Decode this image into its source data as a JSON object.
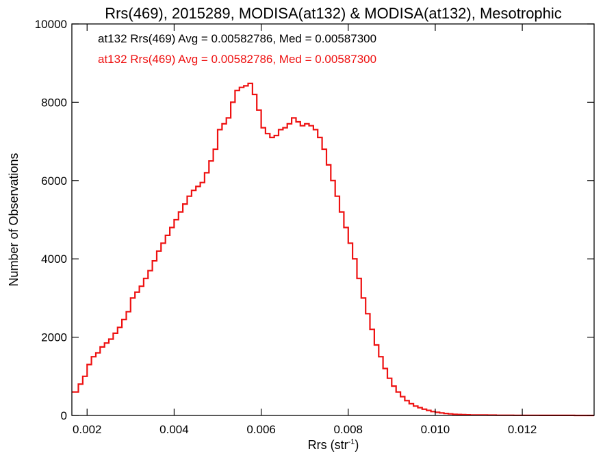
{
  "chart_data": {
    "type": "line",
    "title": "Rrs(469), 2015289, MODISA(at132) & MODISA(at132), Mesotrophic",
    "xlabel": "Rrs (str",
    "xlabel_sup": "-1",
    "xlabel_close": ")",
    "ylabel": "Number of Observations",
    "xlim": [
      0.00165,
      0.01365
    ],
    "ylim": [
      0,
      10000
    ],
    "x_ticks": [
      0.002,
      0.004,
      0.006,
      0.008,
      0.01,
      0.012
    ],
    "x_tick_labels": [
      "0.002",
      "0.004",
      "0.006",
      "0.008",
      "0.010",
      "0.012"
    ],
    "y_ticks": [
      0,
      2000,
      4000,
      6000,
      8000,
      10000
    ],
    "y_tick_labels": [
      "0",
      "2000",
      "4000",
      "6000",
      "8000",
      "10000"
    ],
    "grid": false,
    "legend_position": "top-left",
    "annotations": [
      {
        "text": "at132 Rrs(469) Avg = 0.00582786, Med = 0.00587300",
        "color": "#000000"
      },
      {
        "text": "at132 Rrs(469) Avg = 0.00582786, Med = 0.00587300",
        "color": "#ee1111"
      }
    ],
    "series": [
      {
        "color": "#ee1111",
        "step": true,
        "x": [
          0.00165,
          0.0018,
          0.0019,
          0.002,
          0.0021,
          0.0022,
          0.0023,
          0.0024,
          0.0025,
          0.0026,
          0.0027,
          0.0028,
          0.0029,
          0.003,
          0.0031,
          0.0032,
          0.0033,
          0.0034,
          0.0035,
          0.0036,
          0.0037,
          0.0038,
          0.0039,
          0.004,
          0.0041,
          0.0042,
          0.0043,
          0.0044,
          0.0045,
          0.0046,
          0.0047,
          0.0048,
          0.0049,
          0.005,
          0.0051,
          0.0052,
          0.0053,
          0.0054,
          0.0055,
          0.0056,
          0.0057,
          0.0058,
          0.0059,
          0.006,
          0.0061,
          0.0062,
          0.0063,
          0.0064,
          0.0065,
          0.0066,
          0.0067,
          0.0068,
          0.0069,
          0.007,
          0.0071,
          0.0072,
          0.0073,
          0.0074,
          0.0075,
          0.0076,
          0.0077,
          0.0078,
          0.0079,
          0.008,
          0.0081,
          0.0082,
          0.0083,
          0.0084,
          0.0085,
          0.0086,
          0.0087,
          0.0088,
          0.0089,
          0.009,
          0.0091,
          0.0092,
          0.0093,
          0.0094,
          0.0095,
          0.0096,
          0.0097,
          0.0098,
          0.0099,
          0.01,
          0.0101,
          0.0102,
          0.0103,
          0.0104,
          0.0105,
          0.0106,
          0.0107,
          0.0108,
          0.011,
          0.0112,
          0.0114,
          0.0116,
          0.0118,
          0.012,
          0.0124,
          0.0128,
          0.0132,
          0.01365
        ],
        "y": [
          600,
          800,
          1000,
          1300,
          1500,
          1600,
          1750,
          1850,
          1950,
          2100,
          2250,
          2450,
          2650,
          3000,
          3150,
          3300,
          3500,
          3700,
          3950,
          4200,
          4400,
          4600,
          4800,
          5000,
          5200,
          5400,
          5600,
          5750,
          5850,
          5950,
          6200,
          6500,
          6800,
          7300,
          7450,
          7600,
          8000,
          8300,
          8380,
          8420,
          8480,
          8200,
          7800,
          7350,
          7200,
          7100,
          7150,
          7300,
          7350,
          7450,
          7600,
          7500,
          7400,
          7450,
          7400,
          7300,
          7100,
          6800,
          6400,
          6000,
          5600,
          5200,
          4800,
          4400,
          4000,
          3500,
          3000,
          2600,
          2200,
          1800,
          1500,
          1200,
          950,
          750,
          600,
          480,
          380,
          300,
          240,
          200,
          160,
          130,
          100,
          80,
          65,
          50,
          40,
          30,
          25,
          20,
          16,
          12,
          10,
          8,
          6,
          5,
          4,
          3,
          2,
          1,
          0,
          0
        ]
      }
    ]
  }
}
